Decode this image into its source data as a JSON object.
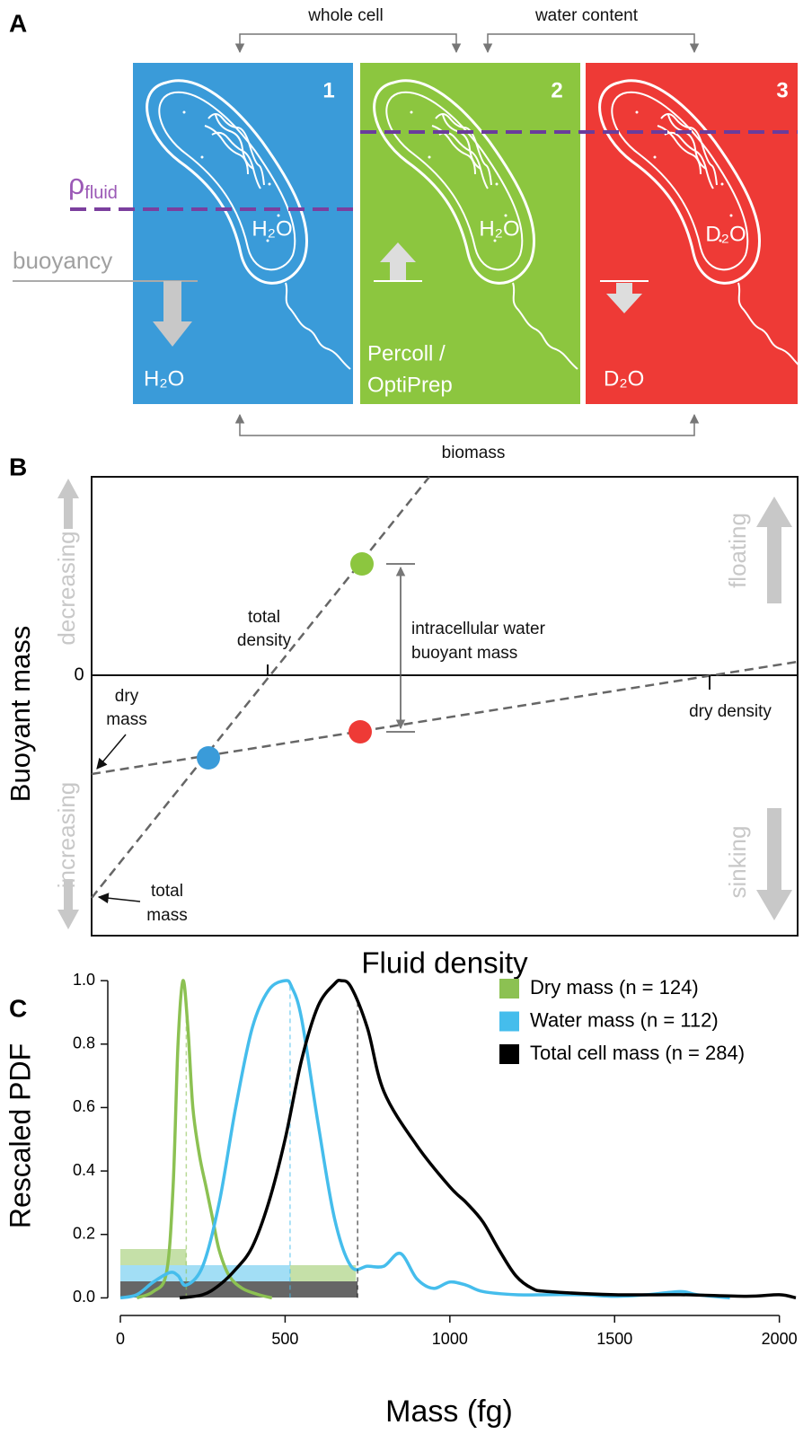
{
  "panel_a": {
    "label": "A",
    "top_brackets": [
      "whole cell",
      "water content"
    ],
    "bottom_bracket": "biomass",
    "panel_numbers": [
      "1",
      "2",
      "3"
    ],
    "rho": "ρ",
    "rho_sub": "fluid",
    "buoyancy": "buoyancy",
    "cell_labels": [
      "H₂O",
      "H₂O",
      "D₂O"
    ],
    "fluid_labels": [
      [
        "H₂O"
      ],
      [
        "Percoll /",
        "OptiPrep"
      ],
      [
        "D₂O"
      ]
    ]
  },
  "panel_b": {
    "label": "B",
    "ylabel": "Buoyant mass",
    "xlabel": "Fluid density",
    "zero": "0",
    "decreasing": "decreasing",
    "increasing": "increasing",
    "floating": "floating",
    "sinking": "sinking",
    "total_density": [
      "total",
      "density"
    ],
    "water_mass": [
      "intracellular water",
      "buoyant mass"
    ],
    "dry_mass": [
      "dry",
      "mass"
    ],
    "dry_density": "dry density",
    "total_mass": [
      "total",
      "mass"
    ]
  },
  "panel_c_label": "C",
  "chart_data": {
    "type": "line",
    "xlabel": "Mass (fg)",
    "ylabel": "Rescaled PDF",
    "xlim": [
      0,
      2050
    ],
    "ylim": [
      -0.03,
      1.04
    ],
    "xticks": [
      0,
      500,
      1000,
      1500,
      2000
    ],
    "yticks": [
      {
        "value": 0,
        "label": "0.0"
      },
      0.2,
      0.4,
      0.6,
      0.8,
      {
        "value": 1,
        "label": "1.0"
      }
    ],
    "legend": "upper right",
    "series": [
      {
        "name": "Dry mass (n = 124)",
        "color": "#8cc152",
        "median": 200,
        "x": [
          50,
          100,
          140,
          160,
          175,
          190,
          205,
          220,
          240,
          260,
          280,
          300,
          330,
          370,
          420,
          460
        ],
        "y": [
          0,
          0.02,
          0.08,
          0.35,
          0.8,
          1.0,
          0.85,
          0.6,
          0.45,
          0.35,
          0.25,
          0.15,
          0.07,
          0.03,
          0.01,
          0
        ]
      },
      {
        "name": "Water mass (n = 112)",
        "color": "#45bdec",
        "median": 515,
        "x": [
          0,
          50,
          100,
          150,
          175,
          200,
          250,
          300,
          350,
          400,
          450,
          500,
          520,
          550,
          600,
          650,
          700,
          750,
          800,
          850,
          900,
          950,
          1000,
          1050,
          1100,
          1200,
          1300,
          1400,
          1500,
          1600,
          1700,
          1750,
          1850
        ],
        "y": [
          0,
          0.01,
          0.05,
          0.08,
          0.07,
          0.04,
          0.1,
          0.3,
          0.6,
          0.85,
          0.97,
          1.0,
          0.98,
          0.88,
          0.55,
          0.25,
          0.1,
          0.1,
          0.1,
          0.14,
          0.06,
          0.03,
          0.05,
          0.04,
          0.02,
          0.01,
          0.01,
          0.01,
          0.005,
          0.01,
          0.02,
          0.01,
          0
        ]
      },
      {
        "name": "Total cell mass (n = 284)",
        "color": "#000000",
        "median": 720,
        "x": [
          180,
          250,
          300,
          350,
          400,
          450,
          500,
          550,
          600,
          650,
          670,
          700,
          750,
          800,
          900,
          1000,
          1050,
          1100,
          1150,
          1200,
          1250,
          1300,
          1500,
          1700,
          1900,
          2000,
          2050
        ],
        "y": [
          0,
          0.01,
          0.04,
          0.09,
          0.16,
          0.3,
          0.5,
          0.75,
          0.92,
          0.99,
          1.0,
          0.98,
          0.85,
          0.65,
          0.48,
          0.35,
          0.3,
          0.24,
          0.15,
          0.07,
          0.03,
          0.02,
          0.01,
          0.01,
          0.005,
          0.01,
          0
        ]
      }
    ]
  }
}
